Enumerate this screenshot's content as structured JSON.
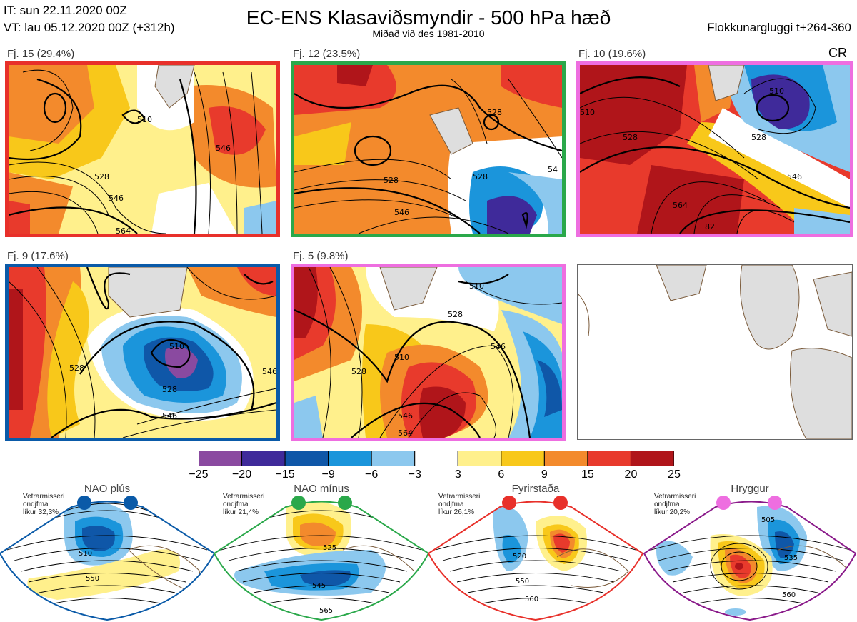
{
  "header": {
    "it": "IT: sun 22.11.2020 00Z",
    "vt": "VT: lau 05.12.2020 00Z  (+312h)",
    "title": "EC-ENS Klasaviðsmyndir - 500 hPa hæð",
    "subtitle": "Miðað við des 1981-2010",
    "window": "Flokkunargluggi t+264-360",
    "cr": "CR"
  },
  "clusters": [
    {
      "label": "Fj. 15 (29.4%)",
      "border": "#e8302a",
      "contours": [
        "510",
        "528",
        "546",
        "564",
        "546"
      ]
    },
    {
      "label": "Fj. 12 (23.5%)",
      "border": "#2aa84a",
      "contours": [
        "528",
        "528",
        "546",
        "528",
        "54"
      ]
    },
    {
      "label": "Fj. 10 (19.6%)",
      "border": "#ee6ee0",
      "contours": [
        "510",
        "528",
        "510",
        "528",
        "546",
        "564",
        "82"
      ]
    },
    {
      "label": "Fj. 9 (17.6%)",
      "border": "#0a5aa8",
      "contours": [
        "528",
        "510",
        "528",
        "546",
        "546"
      ]
    },
    {
      "label": "Fj. 5 (9.8%)",
      "border": "#ee6ee0",
      "contours": [
        "510",
        "528",
        "510",
        "546",
        "528",
        "546",
        "564"
      ]
    }
  ],
  "colorbar": {
    "ticks": [
      "−25",
      "−20",
      "−15",
      "−9",
      "−6",
      "−3",
      "3",
      "6",
      "9",
      "15",
      "20",
      "25"
    ],
    "colors": [
      "#8a4aa0",
      "#3f2a9a",
      "#0f57a8",
      "#1b95db",
      "#8cc8ee",
      "#ffffff",
      "#fff08c",
      "#f8c81a",
      "#f38a2c",
      "#e83a2c",
      "#b0151a"
    ]
  },
  "regimes": [
    {
      "title": "NAO plús",
      "note": [
        "Vetrarmisseri",
        "ondjfma",
        "líkur 32,3%"
      ],
      "color": "#0a5aa8",
      "contours": [
        "510",
        "550"
      ]
    },
    {
      "title": "NAO mínus",
      "note": [
        "Vetrarmisseri",
        "ondjfma",
        "líkur 21,4%"
      ],
      "color": "#2aa84a",
      "contours": [
        "525",
        "545",
        "565"
      ]
    },
    {
      "title": "Fyrirstaða",
      "note": [
        "Vetrarmisseri",
        "ondjfma",
        "líkur 26,1%"
      ],
      "color": "#e8302a",
      "contours": [
        "520",
        "550",
        "560"
      ]
    },
    {
      "title": "Hryggur",
      "note": [
        "Vetrarmisseri",
        "ondjfma",
        "líkur 20,2%"
      ],
      "color": "#ee6ee0",
      "contours": [
        "505",
        "535",
        "560"
      ]
    }
  ]
}
